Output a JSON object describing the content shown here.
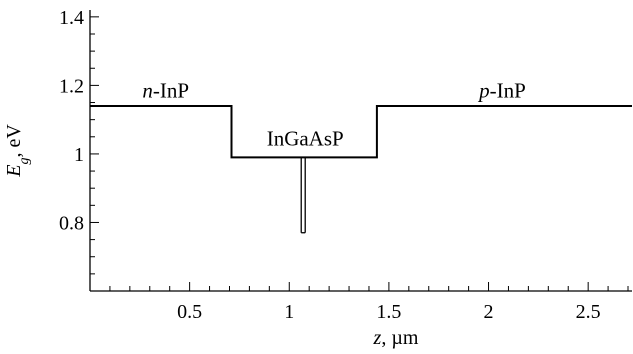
{
  "chart_data": {
    "type": "line",
    "xlabel": {
      "var": "z",
      "unit": ", µm"
    },
    "ylabel": {
      "var": "E",
      "sub": "g",
      "unit": ", eV"
    },
    "xlim": [
      0,
      2.72
    ],
    "ylim": [
      0.6,
      1.42
    ],
    "x_ticks_major": [
      0.5,
      1,
      1.5,
      2,
      2.5
    ],
    "x_tick_labels": [
      "0.5",
      "1",
      "1.5",
      "2",
      "2.5"
    ],
    "y_ticks_major": [
      0.8,
      1,
      1.2,
      1.4
    ],
    "y_tick_labels": [
      "0.8",
      "1",
      "1.2",
      "1.4"
    ],
    "grid": false,
    "series": [
      {
        "x": [
          0,
          0.71,
          0.71,
          1.44,
          1.44,
          2.72
        ],
        "y": [
          1.14,
          1.14,
          0.99,
          0.99,
          1.14,
          1.14
        ]
      }
    ],
    "quantum_well": {
      "x": [
        1.06,
        1.08
      ],
      "y_top": 0.99,
      "y_bottom": 0.77
    },
    "annotations": [
      {
        "prefix": "n",
        "suffix": "-InP",
        "x": 0.38,
        "y": 1.165
      },
      {
        "prefix": "",
        "suffix": "InGaAsP",
        "x": 1.08,
        "y": 1.025
      },
      {
        "prefix": "p",
        "suffix": "-InP",
        "x": 2.07,
        "y": 1.165
      }
    ]
  }
}
